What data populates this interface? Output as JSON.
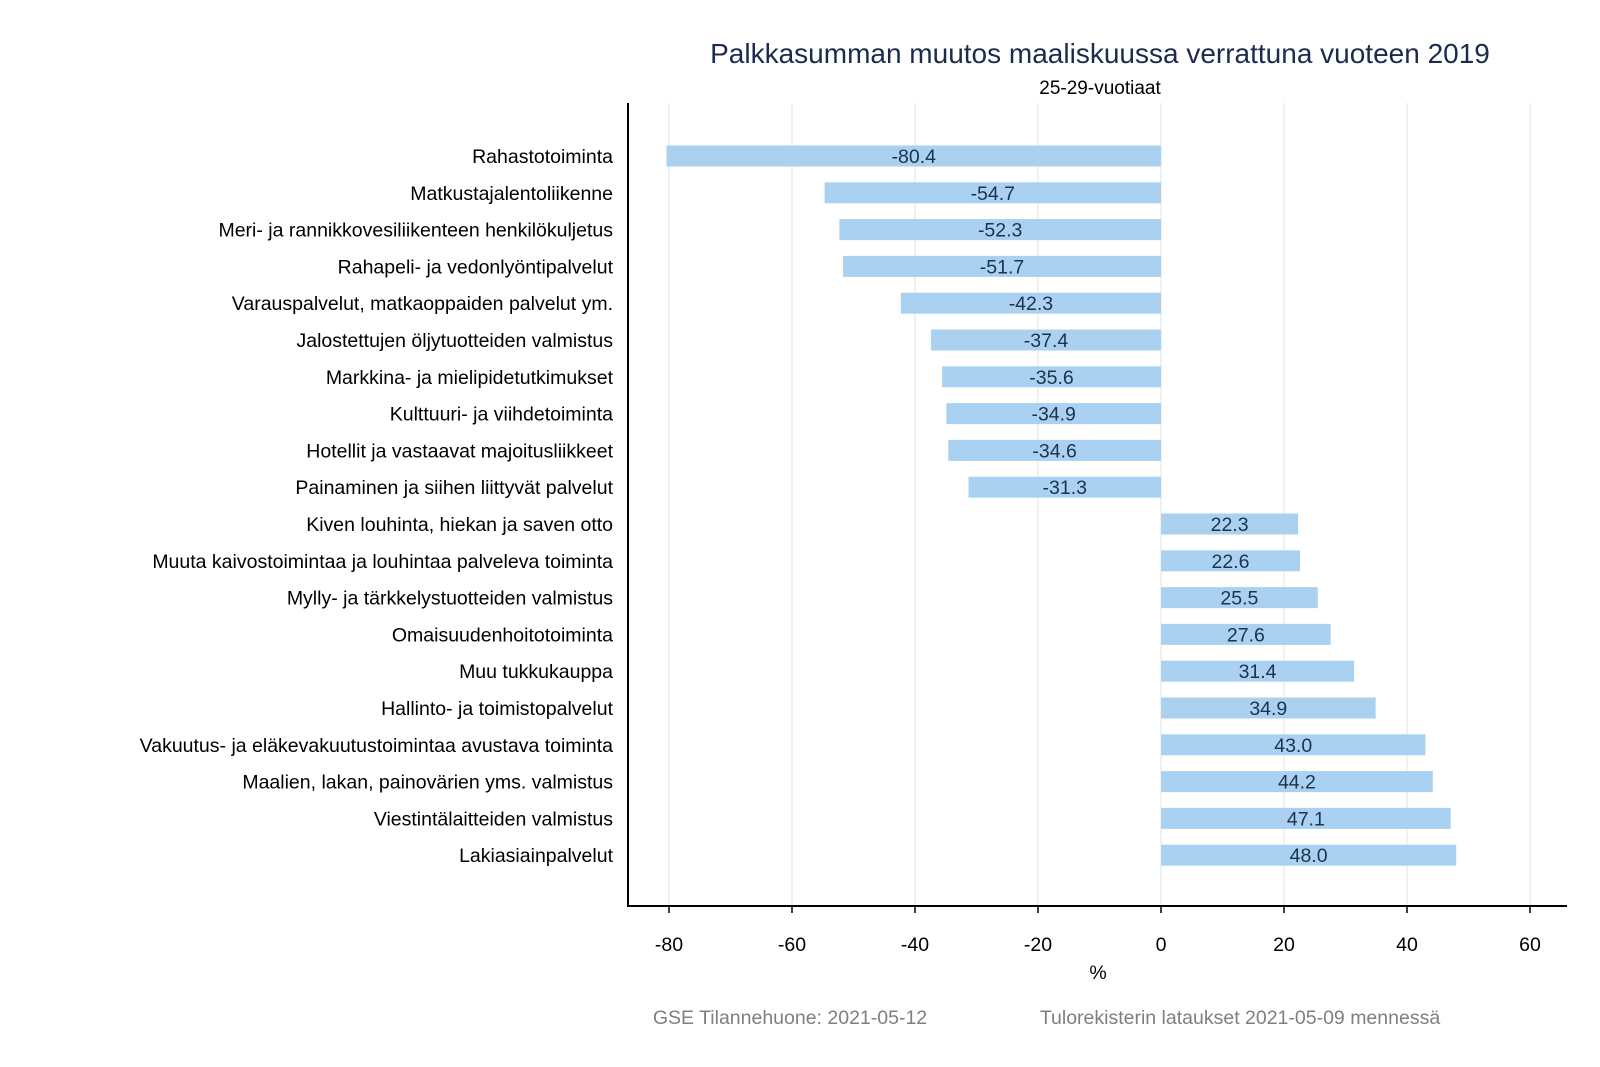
{
  "chart_data": {
    "type": "bar",
    "orientation": "horizontal",
    "title": "Palkkasumman muutos maaliskuussa verrattuna vuoteen 2019",
    "subtitle": "25-29-vuotiaat",
    "xlabel": "%",
    "ylabel": "",
    "xlim": [
      -86,
      62
    ],
    "xticks": [
      -80,
      -60,
      -40,
      -20,
      0,
      20,
      40,
      60
    ],
    "xtick_labels": [
      "-80",
      "-60",
      "-40",
      "-20",
      "0",
      "20",
      "40",
      "60"
    ],
    "grid": true,
    "bar_color": "#aad2f0",
    "categories": [
      "Rahastotoiminta",
      "Matkustajalentoliikenne",
      "Meri- ja rannikkovesiliikenteen henkilökuljetus",
      "Rahapeli- ja vedonlyöntipalvelut",
      "Varauspalvelut, matkaoppaiden palvelut ym.",
      "Jalostettujen öljytuotteiden valmistus",
      "Markkina- ja mielipidetutkimukset",
      "Kulttuuri- ja viihdetoiminta",
      "Hotellit ja vastaavat majoitusliikkeet",
      "Painaminen ja siihen liittyvät palvelut",
      "Kiven louhinta, hiekan ja saven otto",
      "Muuta kaivostoimintaa ja louhintaa palveleva toiminta",
      "Mylly- ja tärkkelystuotteiden valmistus",
      "Omaisuudenhoitotoiminta",
      "Muu tukkukauppa",
      "Hallinto- ja toimistopalvelut",
      "Vakuutus- ja eläkevakuutustoimintaa avustava toiminta",
      "Maalien, lakan, painovärien yms. valmistus",
      "Viestintälaitteiden valmistus",
      "Lakiasiainpalvelut"
    ],
    "values": [
      -80.4,
      -54.7,
      -52.3,
      -51.7,
      -42.3,
      -37.4,
      -35.6,
      -34.9,
      -34.6,
      -31.3,
      22.3,
      22.6,
      25.5,
      27.6,
      31.4,
      34.9,
      43.0,
      44.2,
      47.1,
      48.0
    ],
    "value_labels": [
      "-80.4",
      "-54.7",
      "-52.3",
      "-51.7",
      "-42.3",
      "-37.4",
      "-35.6",
      "-34.9",
      "-34.6",
      "-31.3",
      "22.3",
      "22.6",
      "25.5",
      "27.6",
      "31.4",
      "34.9",
      "43.0",
      "44.2",
      "47.1",
      "48.0"
    ]
  },
  "footer": {
    "source_left": "GSE Tilannehuone: 2021-05-12",
    "source_right": "Tulorekisterin lataukset 2021-05-09 mennessä"
  }
}
